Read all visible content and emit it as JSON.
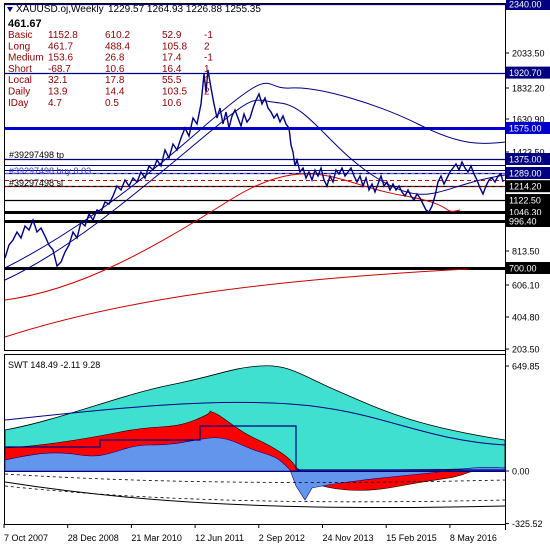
{
  "header": {
    "title": "XAUUSD.oj,Weekly",
    "ohlc": "1229.57 1264.93 1226.88 1255.35",
    "current_value": "461.67"
  },
  "levels_table": [
    {
      "label": "Basic",
      "v1": "1152.8",
      "v2": "610.2",
      "v3": "52.9",
      "v4": "-1"
    },
    {
      "label": "Long",
      "v1": "461.7",
      "v2": "488.4",
      "v3": "105.8",
      "v4": "2"
    },
    {
      "label": "Medium",
      "v1": "153.6",
      "v2": "26.8",
      "v3": "17.4",
      "v4": "-1"
    },
    {
      "label": "Short",
      "v1": "-68.7",
      "v2": "10.6",
      "v3": "16.4",
      "v4": "1"
    },
    {
      "label": "Local",
      "v1": "32.1",
      "v2": "17.8",
      "v3": "55.5",
      "v4": "1"
    },
    {
      "label": "Daily",
      "v1": "13.9",
      "v2": "14.4",
      "v3": "103.5",
      "v4": "2"
    },
    {
      "label": "IDay",
      "v1": "4.7",
      "v2": "0.5",
      "v3": "10.6",
      "v4": ""
    }
  ],
  "orders": {
    "tp": "#39297498 tp",
    "buy": "#39297498 buy 0.03",
    "sl": "#39297498 sl"
  },
  "price_axis": {
    "ticks": [
      {
        "label": "2033.50",
        "value": 2033.5
      },
      {
        "label": "1832.20",
        "value": 1832.2
      },
      {
        "label": "1630.90",
        "value": 1630.9
      },
      {
        "label": "1423.50",
        "value": 1423.5
      },
      {
        "label": "1222.20",
        "value": 1222.2
      },
      {
        "label": "813.50",
        "value": 813.5
      },
      {
        "label": "606.10",
        "value": 606.1
      },
      {
        "label": "404.80",
        "value": 404.8
      },
      {
        "label": "203.50",
        "value": 203.5
      }
    ],
    "badges": [
      {
        "label": "2340.00",
        "value": 2340.0,
        "style": "dark",
        "color": "#000080"
      },
      {
        "label": "1920.70",
        "value": 1920.7,
        "style": "dark",
        "color": "#000080"
      },
      {
        "label": "1575.00",
        "value": 1575.0,
        "style": "dark",
        "color": "#0000cc"
      },
      {
        "label": "1375.00",
        "value": 1375.0,
        "style": "dark",
        "color": "#000080"
      },
      {
        "label": "1289.00",
        "value": 1289.0,
        "style": "dark",
        "color": "#000080"
      },
      {
        "label": "1214.20",
        "value": 1214.2,
        "style": "dark",
        "color": "#000000"
      },
      {
        "label": "1122.50",
        "value": 1122.5,
        "style": "dark",
        "color": "#000000"
      },
      {
        "label": "1046.30",
        "value": 1046.3,
        "style": "dark",
        "color": "#000000"
      },
      {
        "label": "996.40",
        "value": 996.4,
        "style": "dark",
        "color": "#000000"
      },
      {
        "label": "700.00",
        "value": 700.0,
        "style": "dark",
        "color": "#000000"
      }
    ]
  },
  "indicator": {
    "title": "SWT 148.49 -2.11 9.28",
    "ticks": [
      {
        "label": "649.85",
        "value": 649.85
      },
      {
        "label": "0.00",
        "value": 0
      },
      {
        "label": "-325.52",
        "value": -325.52
      }
    ]
  },
  "time_axis": [
    "7 Oct 2007",
    "28 Dec 2008",
    "21 Mar 2010",
    "12 Jun 2011",
    "2 Sep 2012",
    "24 Nov 2013",
    "15 Feb 2015",
    "8 May 2016"
  ],
  "colors": {
    "price": "#000080",
    "level_blue": "#0000cc",
    "level_black": "#000000",
    "trend_red": "#cc0000",
    "label_red": "#8b0000",
    "cyan_fill": "#40e0d0",
    "red_fill": "#ff0000",
    "blue_fill": "#6495ed"
  }
}
